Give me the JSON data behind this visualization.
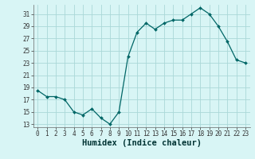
{
  "x": [
    0,
    1,
    2,
    3,
    4,
    5,
    6,
    7,
    8,
    9,
    10,
    11,
    12,
    13,
    14,
    15,
    16,
    17,
    18,
    19,
    20,
    21,
    22,
    23
  ],
  "y": [
    18.5,
    17.5,
    17.5,
    17.0,
    15.0,
    14.5,
    15.5,
    14.0,
    13.0,
    15.0,
    24.0,
    28.0,
    29.5,
    28.5,
    29.5,
    30.0,
    30.0,
    31.0,
    32.0,
    31.0,
    29.0,
    26.5,
    23.5,
    23.0
  ],
  "xlabel": "Humidex (Indice chaleur)",
  "ylim": [
    12.5,
    32.5
  ],
  "xlim": [
    -0.5,
    23.5
  ],
  "yticks": [
    13,
    15,
    17,
    19,
    21,
    23,
    25,
    27,
    29,
    31
  ],
  "xticks": [
    0,
    1,
    2,
    3,
    4,
    5,
    6,
    7,
    8,
    9,
    10,
    11,
    12,
    13,
    14,
    15,
    16,
    17,
    18,
    19,
    20,
    21,
    22,
    23
  ],
  "line_color": "#006666",
  "marker_color": "#006666",
  "bg_color": "#d8f5f5",
  "grid_color": "#aad8d8",
  "tick_fontsize": 5.5,
  "xlabel_fontsize": 7.5
}
